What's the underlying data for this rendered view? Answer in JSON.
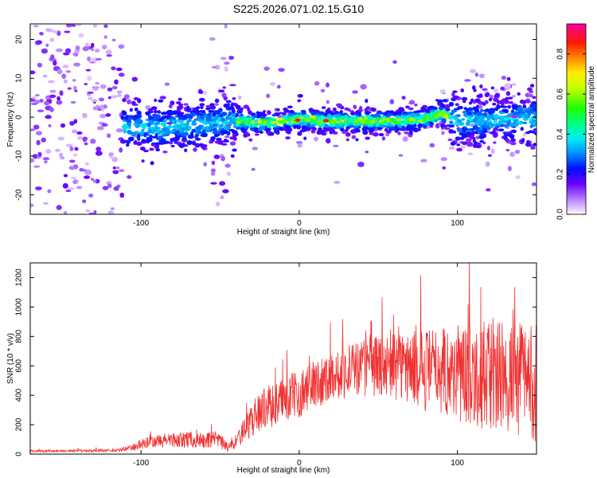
{
  "title": "S225.2026.071.02.15.G10",
  "chart_data": [
    {
      "type": "heatmap",
      "xlabel": "Height of straight line (km)",
      "ylabel": "Frequency (Hz)",
      "xlim": [
        -170,
        150
      ],
      "ylim": [
        -25,
        24
      ],
      "xticks": [
        -100,
        0,
        100
      ],
      "xtick_labels": [
        "-100",
        "0",
        "100"
      ],
      "yticks": [
        -20,
        -10,
        0,
        10,
        20
      ],
      "ytick_labels": [
        "-20",
        "-10",
        "0",
        "10",
        "20"
      ],
      "colorbar": {
        "label": "Normalized spectral amplitude",
        "range": [
          0,
          0.95
        ],
        "ticks": [
          0.0,
          0.2,
          0.4,
          0.6,
          0.8
        ],
        "tick_labels": [
          "0.0",
          "0.2",
          "0.4",
          "0.6",
          "0.8"
        ]
      },
      "ridge": {
        "x": [
          -110,
          -80,
          -60,
          -40,
          -20,
          0,
          20,
          40,
          60,
          80,
          90,
          100,
          120,
          150
        ],
        "freq": [
          -3,
          -2.5,
          -1.5,
          -1,
          -1.5,
          -0.5,
          -1,
          -1,
          -1,
          -0.5,
          1,
          -1,
          -1,
          0
        ]
      }
    },
    {
      "type": "line",
      "xlabel": "Height of straight line (km)",
      "ylabel": "SNR (10 * v/v)",
      "xlim": [
        -170,
        150
      ],
      "ylim": [
        0,
        1300
      ],
      "xticks": [
        -100,
        0,
        100
      ],
      "xtick_labels": [
        "-100",
        "0",
        "100"
      ],
      "yticks": [
        0,
        200,
        400,
        600,
        800,
        1000,
        1200
      ],
      "ytick_labels": [
        "0",
        "200",
        "400",
        "600",
        "800",
        "1000",
        "1200"
      ],
      "color": "#f03030",
      "envelope": {
        "x": [
          -170,
          -115,
          -105,
          -100,
          -90,
          -80,
          -70,
          -60,
          -52,
          -45,
          -40,
          -32,
          -25,
          -15,
          -10,
          0,
          10,
          20,
          30,
          40,
          50,
          60,
          70,
          80,
          90,
          100,
          110,
          120,
          130,
          140,
          150
        ],
        "mean": [
          20,
          25,
          45,
          65,
          85,
          95,
          100,
          90,
          95,
          45,
          80,
          200,
          300,
          340,
          370,
          410,
          480,
          530,
          560,
          590,
          600,
          600,
          590,
          570,
          580,
          540,
          560,
          530,
          520,
          520,
          500
        ],
        "spread": [
          8,
          10,
          25,
          35,
          45,
          50,
          55,
          55,
          60,
          30,
          50,
          100,
          140,
          150,
          160,
          160,
          170,
          170,
          180,
          200,
          210,
          230,
          250,
          280,
          300,
          330,
          360,
          380,
          390,
          400,
          420
        ]
      }
    }
  ]
}
